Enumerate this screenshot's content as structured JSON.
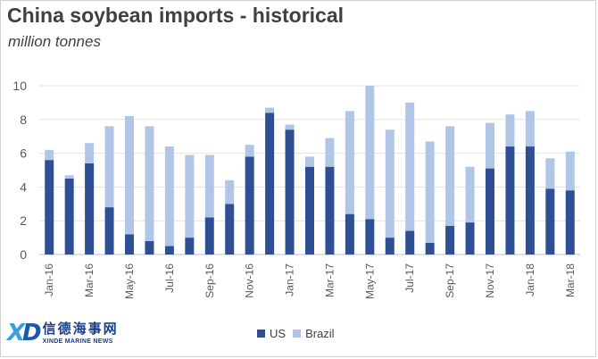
{
  "chart_data": {
    "type": "bar",
    "stacked": true,
    "title": "China soybean imports - historical",
    "subtitle": "million tonnes",
    "categories": [
      "Jan-16",
      "Feb-16",
      "Mar-16",
      "Apr-16",
      "May-16",
      "Jun-16",
      "Jul-16",
      "Aug-16",
      "Sep-16",
      "Oct-16",
      "Nov-16",
      "Dec-16",
      "Jan-17",
      "Feb-17",
      "Mar-17",
      "Apr-17",
      "May-17",
      "Jun-17",
      "Jul-17",
      "Aug-17",
      "Sep-17",
      "Oct-17",
      "Nov-17",
      "Dec-17",
      "Jan-18",
      "Feb-18",
      "Mar-18"
    ],
    "tick_labels": [
      "Jan-16",
      "",
      "Mar-16",
      "",
      "May-16",
      "",
      "Jul-16",
      "",
      "Sep-16",
      "",
      "Nov-16",
      "",
      "Jan-17",
      "",
      "Mar-17",
      "",
      "May-17",
      "",
      "Jul-17",
      "",
      "Sep-17",
      "",
      "Nov-17",
      "",
      "Jan-18",
      "",
      "Mar-18"
    ],
    "series": [
      {
        "name": "US",
        "color": "#2e4f94",
        "values": [
          5.6,
          4.5,
          5.4,
          2.8,
          1.2,
          0.8,
          0.5,
          1.0,
          2.2,
          3.0,
          5.8,
          8.4,
          7.4,
          5.2,
          5.2,
          2.4,
          2.1,
          1.0,
          1.4,
          0.7,
          1.7,
          1.9,
          5.1,
          6.4,
          6.4,
          3.9,
          3.8
        ]
      },
      {
        "name": "Brazil",
        "color": "#b1c6e6",
        "values": [
          0.6,
          0.2,
          1.2,
          4.8,
          7.0,
          6.8,
          5.9,
          4.9,
          3.7,
          1.4,
          0.7,
          0.3,
          0.3,
          0.6,
          1.7,
          6.1,
          7.9,
          6.4,
          7.6,
          6.0,
          5.9,
          3.3,
          2.7,
          1.9,
          2.1,
          1.8,
          2.3
        ]
      }
    ],
    "ylim": [
      0,
      10
    ],
    "yticks": [
      0,
      2,
      4,
      6,
      8,
      10
    ],
    "grid": true,
    "legend": "bottom"
  },
  "logo": {
    "mark_left": "X",
    "mark_right": "D",
    "cn": "信德海事网",
    "en": "XINDE MARINE NEWS"
  }
}
